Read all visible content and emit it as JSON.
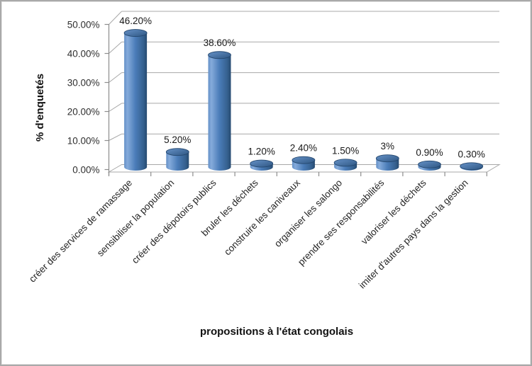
{
  "chart_data": {
    "type": "bar",
    "subtype": "3d-cylinder",
    "title": "",
    "xlabel": "propositions à l'état congolais",
    "ylabel": "% d'enquetés",
    "categories": [
      "créer des services de ramassage",
      "sensibiliser la population",
      "créer des dépotoirs publics",
      "bruler les déchets",
      "construire les caniveaux",
      "organiser les salongo",
      "prendre ses responsabilités",
      "valoriser les déchets",
      "imiter d'autres pays dans la gestion"
    ],
    "values": [
      46.2,
      5.2,
      38.6,
      1.2,
      2.4,
      1.5,
      3,
      0.9,
      0.3
    ],
    "data_labels": [
      "46.20%",
      "5.20%",
      "38.60%",
      "1.20%",
      "2.40%",
      "1.50%",
      "3%",
      "0.90%",
      "0.30%"
    ],
    "y_axis": {
      "ticks": [
        {
          "label": "0.00%",
          "value": 0
        },
        {
          "label": "10.00%",
          "value": 10
        },
        {
          "label": "20.00%",
          "value": 20
        },
        {
          "label": "30.00%",
          "value": 30
        },
        {
          "label": "40.00%",
          "value": 40
        },
        {
          "label": "50.00%",
          "value": 50
        }
      ],
      "ylim": [
        0,
        50
      ]
    },
    "grid": true,
    "legend": "none",
    "series_color": "#4F81BD",
    "colors": {
      "cylinder_left_edge": "#6490C7",
      "cylinder_highlight": "#85ABDB",
      "cylinder_mid": "#4A7CB8",
      "cylinder_shade": "#35608E",
      "cylinder_edge": "#264A70",
      "cylinder_top_light": "#6692C8",
      "cylinder_top_dark": "#2E5682",
      "cylinder_top_stroke": "#24476E",
      "gridline": "#A8A8A8",
      "axis": "#8C8C8C"
    }
  }
}
